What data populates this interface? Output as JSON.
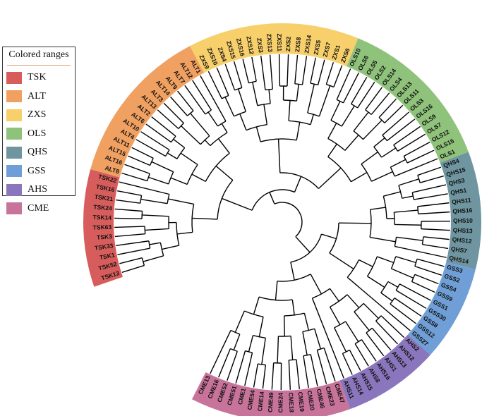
{
  "legend": {
    "title": "Colored ranges",
    "items": [
      {
        "label": "TSK",
        "color": "#d75d5d"
      },
      {
        "label": "ALT",
        "color": "#f0a060"
      },
      {
        "label": "ZXS",
        "color": "#f7cf6b"
      },
      {
        "label": "OLS",
        "color": "#8fc27a"
      },
      {
        "label": "QHS",
        "color": "#6f96a0"
      },
      {
        "label": "GSS",
        "color": "#6f9fd6"
      },
      {
        "label": "AHS",
        "color": "#8a76bd"
      },
      {
        "label": "CME",
        "color": "#c7739a"
      }
    ]
  },
  "groups": [
    {
      "name": "TSK",
      "color": "#d75d5d",
      "leaves": [
        "TSK13",
        "TSK52",
        "TSK1",
        "TSK33",
        "TSK3",
        "TSK63",
        "TSK14",
        "TSK24",
        "TSK21",
        "TSK16",
        "TSK22"
      ]
    },
    {
      "name": "ALT",
      "color": "#f0a060",
      "leaves": [
        "ALT8",
        "ALT16",
        "ALT15",
        "ALT11",
        "ALT4",
        "ALT10",
        "ALT6",
        "ALT2",
        "ALT13",
        "ALT3",
        "ALT14",
        "ALT9",
        "ALT7",
        "ALT12",
        "ALT1"
      ]
    },
    {
      "name": "ZXS",
      "color": "#f7cf6b",
      "leaves": [
        "ZXS9",
        "ZXS10",
        "ZXS4",
        "ZXS15",
        "ZXS16",
        "ZXS12",
        "ZXS3",
        "ZXS13",
        "ZXS11",
        "ZXS2",
        "ZXS8",
        "ZXS14",
        "ZXS5",
        "ZXS7",
        "ZXS1",
        "ZXS6"
      ]
    },
    {
      "name": "OLS",
      "color": "#8fc27a",
      "leaves": [
        "OLS10",
        "OLS8",
        "OLS5",
        "OLS2",
        "OLS14",
        "OLS4",
        "OLS13",
        "OLS11",
        "OLS3",
        "OLS16",
        "OLS9",
        "OLS7",
        "OLS12",
        "OLS15",
        "OLS1"
      ]
    },
    {
      "name": "QHS",
      "color": "#6f96a0",
      "leaves": [
        "QHS4",
        "QHS15",
        "QHS3",
        "QHS1",
        "QHS11",
        "QHS16",
        "QHS10",
        "QHS13",
        "QHS12",
        "QHS7",
        "QHS14"
      ]
    },
    {
      "name": "GSS",
      "color": "#6f9fd6",
      "leaves": [
        "GSS3",
        "GSS2",
        "GSS4",
        "GSS9",
        "GSS1",
        "GSS30",
        "GSS8",
        "GSS12",
        "GSS27"
      ]
    },
    {
      "name": "AHS",
      "color": "#8a76bd",
      "leaves": [
        "AHS2",
        "AHS12",
        "AHS13",
        "AHS1",
        "AHS16",
        "AHS8",
        "AHS15",
        "AHS14",
        "AHS11"
      ]
    },
    {
      "name": "CME",
      "color": "#c7739a",
      "leaves": [
        "CME47",
        "CME23",
        "CME46",
        "CME20",
        "CME19",
        "CME18",
        "CME24",
        "CME49",
        "CME14",
        "CME54",
        "CME1",
        "CME51",
        "CME52",
        "CME16",
        "CME13"
      ]
    }
  ]
}
